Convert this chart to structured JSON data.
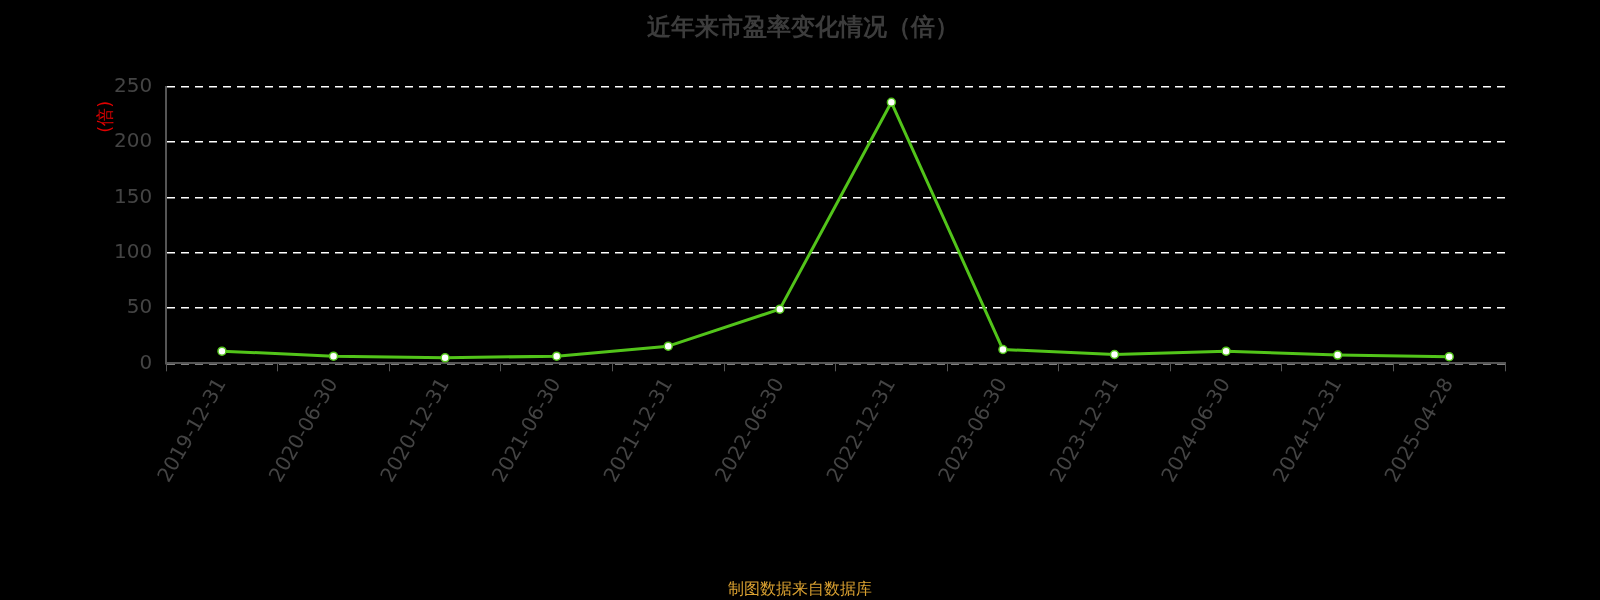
{
  "chart_data": {
    "type": "line",
    "title": "近年来市盈率变化情况（倍）",
    "ylabel": "(倍)",
    "annotations": [
      "制图数据来自数据库"
    ],
    "categories": [
      "2019-12-31",
      "2020-06-30",
      "2020-12-31",
      "2021-06-30",
      "2021-12-31",
      "2022-06-30",
      "2022-12-31",
      "2023-06-30",
      "2023-12-31",
      "2024-06-30",
      "2024-12-31",
      "2025-04-28"
    ],
    "series": [
      {
        "color": "#52c41a",
        "values": [
          11,
          6.5,
          5,
          6.5,
          15.5,
          49,
          236,
          12.5,
          8,
          11,
          7.5,
          6
        ]
      }
    ],
    "ylim": [
      0,
      250
    ],
    "yticks": [
      0,
      50,
      100,
      150,
      200,
      250
    ],
    "grid": "y",
    "legend": false,
    "marker": "circle",
    "line_style": "solid"
  }
}
